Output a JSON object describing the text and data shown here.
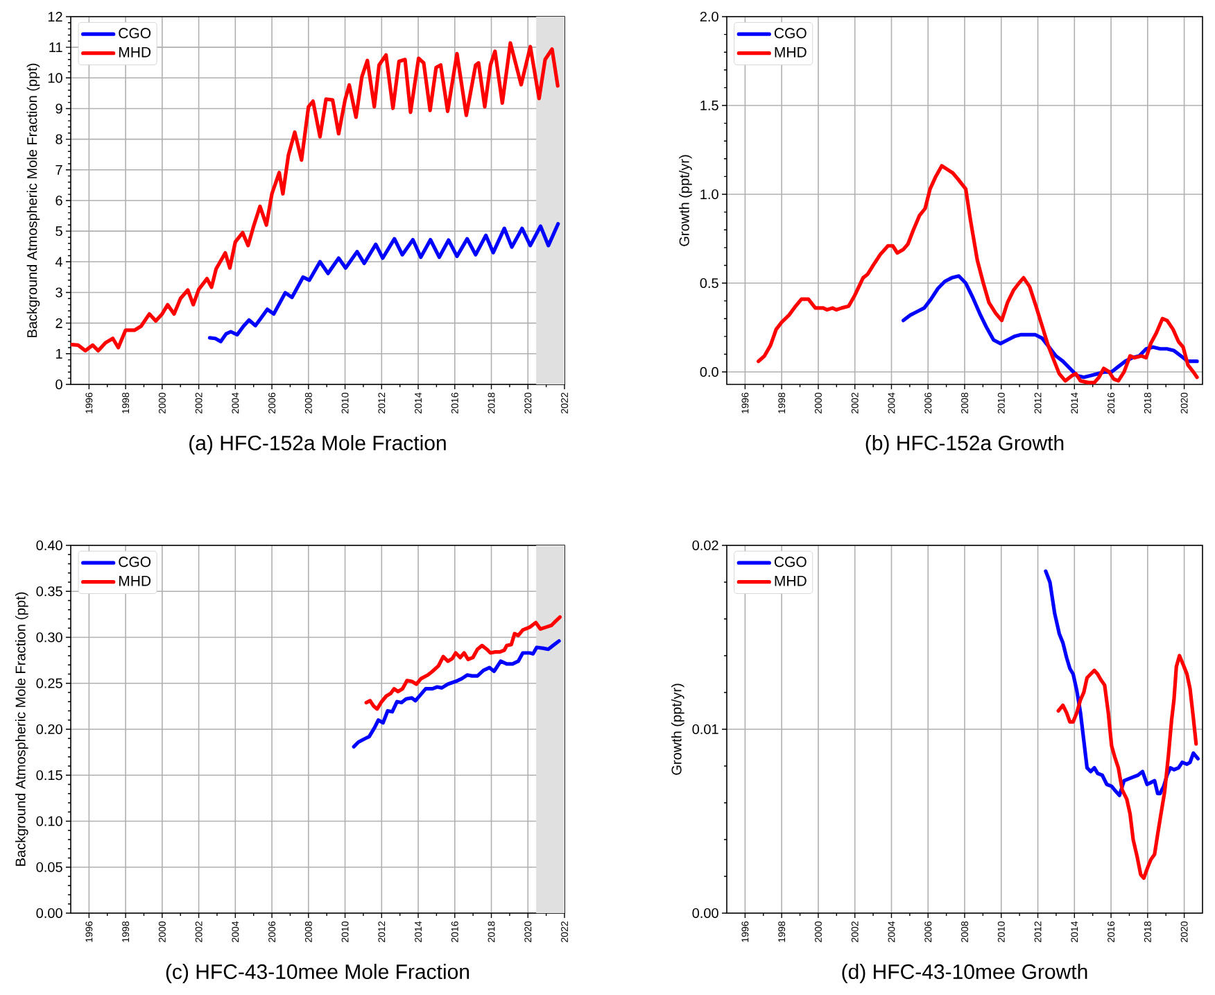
{
  "chart_data": [
    {
      "type": "line",
      "title": "(a) HFC-152a Mole Fraction",
      "ylabel": "Background Atmospheric Mole Fraction (ppt)",
      "xlim": [
        1995,
        2022
      ],
      "xticks": [
        1996,
        1998,
        2000,
        2002,
        2004,
        2006,
        2008,
        2010,
        2012,
        2014,
        2016,
        2018,
        2020,
        2022
      ],
      "ylim": [
        0,
        12
      ],
      "yticks": [
        0,
        1,
        2,
        3,
        4,
        5,
        6,
        7,
        8,
        9,
        10,
        11,
        12
      ],
      "grid": true,
      "legend": "top left",
      "bands": [
        {
          "axis": "x",
          "from": 2020.45,
          "to": 2022,
          "color": "#e0e0e0"
        }
      ],
      "series": [
        {
          "name": "CGO",
          "color": "#0000ff",
          "x": [
            2002.6,
            2002.9,
            2003.2,
            2003.5,
            2003.75,
            2004.1,
            2004.45,
            2004.75,
            2005.1,
            2005.45,
            2005.75,
            2006.1,
            2006.73,
            2007.1,
            2007.7,
            2008.05,
            2008.63,
            2009.07,
            2009.65,
            2010.03,
            2010.66,
            2011.05,
            2011.68,
            2012.06,
            2012.7,
            2013.13,
            2013.71,
            2014.14,
            2014.67,
            2015.15,
            2015.66,
            2016.12,
            2016.68,
            2017.14,
            2017.7,
            2018.1,
            2018.71,
            2019.12,
            2019.68,
            2020.13,
            2020.69,
            2021.12,
            2021.65
          ],
          "values": [
            1.52,
            1.5,
            1.4,
            1.65,
            1.72,
            1.62,
            1.9,
            2.1,
            1.92,
            2.2,
            2.45,
            2.3,
            2.99,
            2.84,
            3.5,
            3.4,
            4.0,
            3.62,
            4.12,
            3.8,
            4.33,
            3.95,
            4.57,
            4.12,
            4.75,
            4.23,
            4.72,
            4.15,
            4.72,
            4.15,
            4.71,
            4.18,
            4.75,
            4.23,
            4.86,
            4.3,
            5.09,
            4.48,
            5.09,
            4.53,
            5.16,
            4.53,
            5.24
          ]
        },
        {
          "name": "MHD",
          "color": "#ff0000",
          "x": [
            1995.04,
            1995.4,
            1995.8,
            1996.2,
            1996.5,
            1996.9,
            1997.3,
            1997.6,
            1998.0,
            1998.5,
            1998.85,
            1999.3,
            1999.65,
            2000.0,
            2000.3,
            2000.65,
            2001.0,
            2001.4,
            2001.7,
            2002.0,
            2002.45,
            2002.7,
            2002.95,
            2003.45,
            2003.7,
            2004.0,
            2004.4,
            2004.7,
            2005.0,
            2005.35,
            2005.7,
            2006.0,
            2006.4,
            2006.6,
            2006.9,
            2007.25,
            2007.62,
            2008.0,
            2008.25,
            2008.63,
            2008.96,
            2009.32,
            2009.65,
            2010.0,
            2010.23,
            2010.6,
            2010.92,
            2011.22,
            2011.6,
            2011.86,
            2012.24,
            2012.62,
            2012.95,
            2013.28,
            2013.58,
            2014.02,
            2014.3,
            2014.65,
            2014.98,
            2015.23,
            2015.61,
            2016.12,
            2016.63,
            2017.14,
            2017.3,
            2017.64,
            2017.95,
            2018.2,
            2018.6,
            2019.04,
            2019.63,
            2020.13,
            2020.61,
            2020.94,
            2021.32,
            2021.63
          ],
          "values": [
            1.3,
            1.28,
            1.1,
            1.28,
            1.1,
            1.36,
            1.5,
            1.2,
            1.77,
            1.77,
            1.9,
            2.3,
            2.07,
            2.3,
            2.6,
            2.3,
            2.8,
            3.08,
            2.6,
            3.1,
            3.45,
            3.17,
            3.77,
            4.29,
            3.8,
            4.65,
            4.95,
            4.53,
            5.16,
            5.81,
            5.2,
            6.22,
            6.91,
            6.22,
            7.47,
            8.23,
            7.32,
            9.06,
            9.24,
            8.08,
            9.31,
            9.28,
            8.18,
            9.28,
            9.77,
            8.72,
            10.04,
            10.57,
            9.06,
            10.42,
            10.75,
            9.01,
            10.54,
            10.6,
            8.88,
            10.64,
            10.49,
            8.94,
            10.34,
            10.42,
            8.91,
            10.79,
            8.78,
            10.42,
            10.49,
            9.06,
            10.42,
            10.87,
            9.18,
            11.14,
            9.78,
            11.02,
            9.33,
            10.6,
            10.94,
            9.74
          ]
        }
      ]
    },
    {
      "type": "line",
      "title": "(b) HFC-152a Growth",
      "ylabel": "Growth (ppt/yr)",
      "xlim": [
        1995,
        2021
      ],
      "xticks": [
        1996,
        1998,
        2000,
        2002,
        2004,
        2006,
        2008,
        2010,
        2012,
        2014,
        2016,
        2018,
        2020
      ],
      "ylim": [
        -0.07,
        2.0
      ],
      "yticks": [
        {
          "value": 0,
          "label": "0.0"
        },
        0.5,
        {
          "value": 1,
          "label": "1.0"
        },
        1.5,
        {
          "value": 2,
          "label": "2.0"
        }
      ],
      "grid": true,
      "legend": "top left",
      "series": [
        {
          "name": "CGO",
          "color": "#0000ff",
          "x": [
            2004.65,
            2005.03,
            2005.41,
            2005.79,
            2006.16,
            2006.54,
            2006.92,
            2007.3,
            2007.68,
            2008.06,
            2008.44,
            2008.82,
            2009.2,
            2009.58,
            2009.96,
            2010.34,
            2010.72,
            2011.09,
            2011.47,
            2011.85,
            2012.23,
            2012.61,
            2012.99,
            2013.37,
            2013.75,
            2014.13,
            2014.51,
            2014.89,
            2015.27,
            2015.65,
            2016.03,
            2016.4,
            2016.78,
            2017.16,
            2017.54,
            2017.92,
            2018.3,
            2018.68,
            2019.06,
            2019.44,
            2019.82,
            2020.2,
            2020.7
          ],
          "values": [
            0.29,
            0.32,
            0.34,
            0.36,
            0.41,
            0.47,
            0.51,
            0.53,
            0.54,
            0.5,
            0.42,
            0.33,
            0.25,
            0.18,
            0.16,
            0.18,
            0.2,
            0.21,
            0.21,
            0.21,
            0.19,
            0.14,
            0.09,
            0.06,
            0.02,
            -0.02,
            -0.03,
            -0.02,
            -0.01,
            0.0,
            0.0,
            0.03,
            0.06,
            0.08,
            0.09,
            0.13,
            0.14,
            0.13,
            0.13,
            0.12,
            0.09,
            0.06,
            0.06
          ]
        },
        {
          "name": "MHD",
          "color": "#ff0000",
          "x": [
            1996.73,
            1997.06,
            1997.39,
            1997.7,
            1998.0,
            1998.4,
            1998.76,
            1999.08,
            1999.46,
            1999.84,
            2000.27,
            2000.47,
            2000.78,
            2000.98,
            2001.28,
            2001.66,
            2001.99,
            2002.45,
            2002.7,
            2003.0,
            2003.38,
            2003.81,
            2004.07,
            2004.32,
            2004.65,
            2004.9,
            2005.2,
            2005.53,
            2005.84,
            2006.11,
            2006.42,
            2006.75,
            2007.05,
            2007.35,
            2007.68,
            2008.06,
            2008.31,
            2008.69,
            2009.02,
            2009.33,
            2009.7,
            2010.03,
            2010.34,
            2010.67,
            2010.97,
            2011.22,
            2011.55,
            2011.9,
            2012.23,
            2012.56,
            2012.86,
            2013.17,
            2013.5,
            2013.88,
            2014.08,
            2014.33,
            2014.76,
            2015.09,
            2015.34,
            2015.6,
            2015.9,
            2016.15,
            2016.4,
            2016.71,
            2017.04,
            2017.29,
            2017.67,
            2017.92,
            2018.17,
            2018.48,
            2018.81,
            2019.06,
            2019.39,
            2019.69,
            2019.94,
            2020.2,
            2020.5,
            2020.7
          ],
          "values": [
            0.06,
            0.09,
            0.15,
            0.24,
            0.28,
            0.32,
            0.37,
            0.41,
            0.41,
            0.36,
            0.36,
            0.35,
            0.36,
            0.35,
            0.36,
            0.37,
            0.43,
            0.53,
            0.55,
            0.6,
            0.66,
            0.71,
            0.71,
            0.67,
            0.69,
            0.72,
            0.8,
            0.88,
            0.92,
            1.03,
            1.1,
            1.16,
            1.14,
            1.12,
            1.08,
            1.03,
            0.86,
            0.63,
            0.5,
            0.39,
            0.33,
            0.29,
            0.39,
            0.46,
            0.5,
            0.53,
            0.48,
            0.37,
            0.26,
            0.15,
            0.07,
            -0.01,
            -0.05,
            -0.02,
            -0.01,
            -0.05,
            -0.06,
            -0.06,
            -0.03,
            0.02,
            0.0,
            -0.04,
            -0.05,
            0.0,
            0.09,
            0.08,
            0.09,
            0.08,
            0.16,
            0.22,
            0.3,
            0.29,
            0.24,
            0.17,
            0.14,
            0.04,
            0.0,
            -0.03
          ]
        }
      ]
    },
    {
      "type": "line",
      "title": "(c) HFC-43-10mee Mole Fraction",
      "ylabel": "Background Atmospheric Mole Fraction (ppt)",
      "xlim": [
        1995,
        2022
      ],
      "xticks": [
        1996,
        1998,
        2000,
        2002,
        2004,
        2006,
        2008,
        2010,
        2012,
        2014,
        2016,
        2018,
        2020,
        2022
      ],
      "ylim": [
        0,
        0.4
      ],
      "yticks": [
        {
          "value": 0,
          "label": "0.00"
        },
        0.05,
        {
          "value": 0.1,
          "label": "0.10"
        },
        0.15,
        {
          "value": 0.2,
          "label": "0.20"
        },
        0.25,
        {
          "value": 0.3,
          "label": "0.30"
        },
        0.35,
        {
          "value": 0.4,
          "label": "0.40"
        }
      ],
      "grid": true,
      "legend": "top left",
      "bands": [
        {
          "axis": "x",
          "from": 2020.45,
          "to": 2022,
          "color": "#e0e0e0"
        }
      ],
      "series": [
        {
          "name": "CGO",
          "color": "#0000ff",
          "x": [
            2010.48,
            2010.73,
            2011.11,
            2011.32,
            2011.62,
            2011.82,
            2012.08,
            2012.33,
            2012.58,
            2012.84,
            2013.09,
            2013.34,
            2013.65,
            2013.85,
            2014.15,
            2014.41,
            2014.78,
            2015.04,
            2015.29,
            2015.62,
            2016.05,
            2016.38,
            2016.68,
            2016.94,
            2017.24,
            2017.57,
            2017.9,
            2018.15,
            2018.51,
            2018.84,
            2019.16,
            2019.47,
            2019.72,
            2020.1,
            2020.28,
            2020.48,
            2020.86,
            2021.11,
            2021.37,
            2021.7
          ],
          "values": [
            0.181,
            0.186,
            0.19,
            0.192,
            0.202,
            0.21,
            0.207,
            0.22,
            0.219,
            0.23,
            0.229,
            0.233,
            0.234,
            0.231,
            0.238,
            0.244,
            0.244,
            0.246,
            0.245,
            0.249,
            0.252,
            0.255,
            0.259,
            0.258,
            0.258,
            0.264,
            0.267,
            0.263,
            0.274,
            0.271,
            0.271,
            0.274,
            0.283,
            0.283,
            0.282,
            0.289,
            0.288,
            0.287,
            0.291,
            0.296
          ]
        },
        {
          "name": "MHD",
          "color": "#ff0000",
          "x": [
            2011.16,
            2011.37,
            2011.57,
            2011.75,
            2012.0,
            2012.25,
            2012.5,
            2012.68,
            2012.89,
            2013.14,
            2013.39,
            2013.65,
            2013.9,
            2014.15,
            2014.53,
            2014.78,
            2015.11,
            2015.37,
            2015.62,
            2015.87,
            2016.05,
            2016.3,
            2016.51,
            2016.73,
            2016.99,
            2017.24,
            2017.49,
            2017.75,
            2017.95,
            2018.2,
            2018.46,
            2018.71,
            2018.84,
            2019.09,
            2019.27,
            2019.47,
            2019.72,
            2020.1,
            2020.43,
            2020.68,
            2020.99,
            2021.29,
            2021.49,
            2021.75
          ],
          "values": [
            0.229,
            0.231,
            0.225,
            0.222,
            0.23,
            0.236,
            0.239,
            0.244,
            0.241,
            0.244,
            0.253,
            0.252,
            0.249,
            0.255,
            0.259,
            0.263,
            0.269,
            0.279,
            0.274,
            0.277,
            0.283,
            0.278,
            0.283,
            0.276,
            0.278,
            0.287,
            0.291,
            0.287,
            0.283,
            0.284,
            0.284,
            0.286,
            0.291,
            0.292,
            0.304,
            0.302,
            0.308,
            0.311,
            0.316,
            0.309,
            0.311,
            0.313,
            0.317,
            0.322
          ]
        }
      ]
    },
    {
      "type": "line",
      "title": "(d) HFC-43-10mee Growth",
      "ylabel": "Growth (ppt/yr)",
      "xlim": [
        1995,
        2021
      ],
      "xticks": [
        1996,
        1998,
        2000,
        2002,
        2004,
        2006,
        2008,
        2010,
        2012,
        2014,
        2016,
        2018,
        2020
      ],
      "ylim": [
        0,
        0.02
      ],
      "yticks": [
        {
          "value": 0,
          "label": "0.00"
        },
        0.01,
        0.02
      ],
      "grid": true,
      "legend": "top left",
      "series": [
        {
          "name": "CGO",
          "color": "#0000ff",
          "x": [
            2012.43,
            2012.66,
            2012.92,
            2013.17,
            2013.37,
            2013.57,
            2013.75,
            2013.93,
            2014.13,
            2014.33,
            2014.51,
            2014.69,
            2014.89,
            2015.09,
            2015.27,
            2015.52,
            2015.77,
            2016.03,
            2016.28,
            2016.46,
            2016.71,
            2016.96,
            2017.21,
            2017.47,
            2017.72,
            2017.97,
            2018.17,
            2018.38,
            2018.55,
            2018.68,
            2018.88,
            2019.06,
            2019.24,
            2019.44,
            2019.69,
            2019.89,
            2020.15,
            2020.32,
            2020.5,
            2020.75
          ],
          "values": [
            0.0186,
            0.018,
            0.0163,
            0.0152,
            0.0147,
            0.0139,
            0.0133,
            0.013,
            0.0121,
            0.0109,
            0.0094,
            0.0079,
            0.0077,
            0.0079,
            0.0076,
            0.0075,
            0.007,
            0.0069,
            0.0066,
            0.0064,
            0.0072,
            0.0073,
            0.0074,
            0.0075,
            0.0077,
            0.007,
            0.0071,
            0.0072,
            0.0065,
            0.0065,
            0.0069,
            0.0075,
            0.0079,
            0.0078,
            0.0079,
            0.0082,
            0.0081,
            0.0082,
            0.0087,
            0.0084
          ]
        },
        {
          "name": "MHD",
          "color": "#ff0000",
          "x": [
            2013.12,
            2013.37,
            2013.57,
            2013.75,
            2013.93,
            2014.13,
            2014.33,
            2014.51,
            2014.69,
            2014.89,
            2015.09,
            2015.27,
            2015.44,
            2015.65,
            2015.85,
            2016.03,
            2016.2,
            2016.4,
            2016.61,
            2016.86,
            2017.04,
            2017.21,
            2017.42,
            2017.62,
            2017.79,
            2017.97,
            2018.17,
            2018.38,
            2018.55,
            2018.73,
            2018.93,
            2019.14,
            2019.31,
            2019.44,
            2019.57,
            2019.74,
            2019.95,
            2020.15,
            2020.32,
            2020.5,
            2020.65
          ],
          "values": [
            0.011,
            0.0113,
            0.0109,
            0.0104,
            0.0104,
            0.0109,
            0.0116,
            0.012,
            0.0128,
            0.013,
            0.0132,
            0.013,
            0.0127,
            0.0124,
            0.0109,
            0.0091,
            0.0085,
            0.0079,
            0.0067,
            0.0062,
            0.0054,
            0.004,
            0.0031,
            0.0021,
            0.0019,
            0.0024,
            0.0029,
            0.0032,
            0.0043,
            0.0054,
            0.0066,
            0.0086,
            0.0105,
            0.0116,
            0.0134,
            0.014,
            0.0135,
            0.013,
            0.0122,
            0.0106,
            0.0092
          ]
        }
      ]
    }
  ]
}
